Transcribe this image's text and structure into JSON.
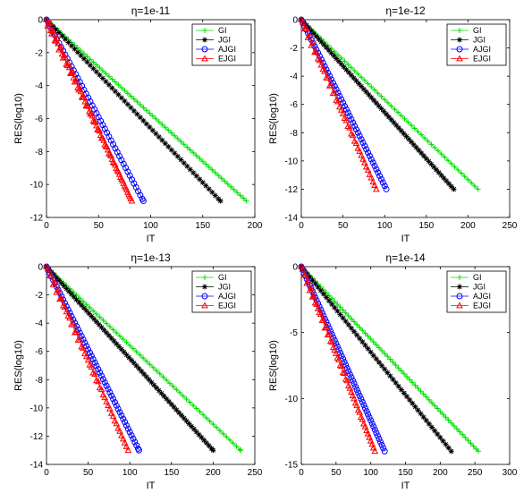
{
  "chart_data": [
    {
      "type": "line",
      "title": "η=1e-11",
      "xlabel": "IT",
      "ylabel": "RES(log10)",
      "xlim": [
        0,
        200
      ],
      "ylim": [
        -12,
        0
      ],
      "xticks": [
        0,
        50,
        100,
        150,
        200
      ],
      "yticks": [
        0,
        -2,
        -4,
        -6,
        -8,
        -10,
        -12
      ],
      "legend_position": "top-right",
      "series": [
        {
          "name": "GI",
          "color": "#00e000",
          "marker": "plus",
          "x_end": 192,
          "y_end": -11
        },
        {
          "name": "JGI",
          "color": "#000000",
          "marker": "asterisk",
          "x_end": 167,
          "y_end": -11
        },
        {
          "name": "AJGI",
          "color": "#0000ff",
          "marker": "circle",
          "x_end": 93,
          "y_end": -11
        },
        {
          "name": "EJGI",
          "color": "#ff0000",
          "marker": "triangle",
          "x_end": 82,
          "y_end": -11
        }
      ]
    },
    {
      "type": "line",
      "title": "η=1e-12",
      "xlabel": "IT",
      "ylabel": "RES(log10)",
      "xlim": [
        0,
        250
      ],
      "ylim": [
        -14,
        0
      ],
      "xticks": [
        0,
        50,
        100,
        150,
        200,
        250
      ],
      "yticks": [
        0,
        -2,
        -4,
        -6,
        -8,
        -10,
        -12,
        -14
      ],
      "legend_position": "top-right",
      "series": [
        {
          "name": "GI",
          "color": "#00e000",
          "marker": "plus",
          "x_end": 212,
          "y_end": -12
        },
        {
          "name": "JGI",
          "color": "#000000",
          "marker": "asterisk",
          "x_end": 183,
          "y_end": -12
        },
        {
          "name": "AJGI",
          "color": "#0000ff",
          "marker": "circle",
          "x_end": 102,
          "y_end": -12
        },
        {
          "name": "EJGI",
          "color": "#ff0000",
          "marker": "triangle",
          "x_end": 90,
          "y_end": -12
        }
      ]
    },
    {
      "type": "line",
      "title": "η=1e-13",
      "xlabel": "IT",
      "ylabel": "RES(log10)",
      "xlim": [
        0,
        250
      ],
      "ylim": [
        -14,
        0
      ],
      "xticks": [
        0,
        50,
        100,
        150,
        200,
        250
      ],
      "yticks": [
        0,
        -2,
        -4,
        -6,
        -8,
        -10,
        -12,
        -14
      ],
      "legend_position": "top-right",
      "series": [
        {
          "name": "GI",
          "color": "#00e000",
          "marker": "plus",
          "x_end": 233,
          "y_end": -13
        },
        {
          "name": "JGI",
          "color": "#000000",
          "marker": "asterisk",
          "x_end": 200,
          "y_end": -13
        },
        {
          "name": "AJGI",
          "color": "#0000ff",
          "marker": "circle",
          "x_end": 111,
          "y_end": -13
        },
        {
          "name": "EJGI",
          "color": "#ff0000",
          "marker": "triangle",
          "x_end": 98,
          "y_end": -13
        }
      ]
    },
    {
      "type": "line",
      "title": "η=1e-14",
      "xlabel": "IT",
      "ylabel": "RES(log10)",
      "xlim": [
        0,
        300
      ],
      "ylim": [
        -15,
        0
      ],
      "xticks": [
        0,
        50,
        100,
        150,
        200,
        250,
        300
      ],
      "yticks": [
        0,
        -5,
        -10,
        -15
      ],
      "legend_position": "top-right",
      "series": [
        {
          "name": "GI",
          "color": "#00e000",
          "marker": "plus",
          "x_end": 255,
          "y_end": -14
        },
        {
          "name": "JGI",
          "color": "#000000",
          "marker": "asterisk",
          "x_end": 216,
          "y_end": -14
        },
        {
          "name": "AJGI",
          "color": "#0000ff",
          "marker": "circle",
          "x_end": 120,
          "y_end": -14
        },
        {
          "name": "EJGI",
          "color": "#ff0000",
          "marker": "triangle",
          "x_end": 106,
          "y_end": -14
        }
      ]
    }
  ]
}
